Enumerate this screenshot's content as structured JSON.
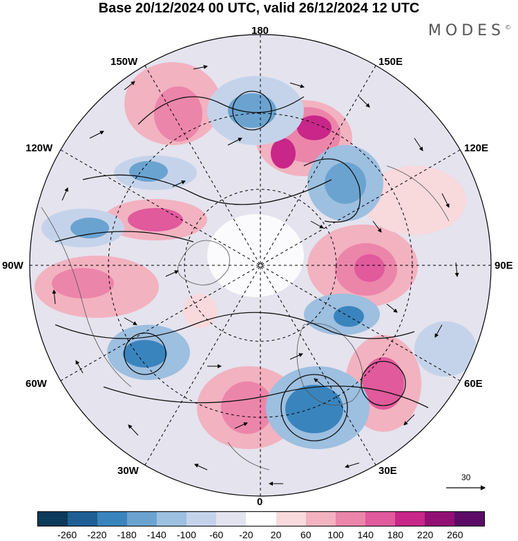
{
  "title": "Base 20/12/2024 00 UTC, valid 26/12/2024 12 UTC",
  "brand": "MODES",
  "brand_mark": "©",
  "longitude_labels": {
    "top": "180",
    "top_left": "150W",
    "top_right": "150E",
    "upper_left": "120W",
    "upper_right": "120E",
    "left": "90W",
    "right": "90E",
    "lower_left": "60W",
    "lower_right": "60E",
    "bottom_left": "30W",
    "bottom_right": "30E",
    "bottom": "0"
  },
  "reference_vector": "30",
  "colorbar": {
    "colors": [
      "#0b3a5a",
      "#1f5f94",
      "#3a84bd",
      "#6ba3d0",
      "#9dbfe0",
      "#c5d3ea",
      "#e3e3f0",
      "#ffffff",
      "#f8d9dc",
      "#f2b2c0",
      "#ec85aa",
      "#e05a9c",
      "#c82689",
      "#920f74",
      "#5b0b66"
    ],
    "ticks": [
      "-260",
      "-220",
      "-180",
      "-140",
      "-100",
      "-60",
      "-20",
      "20",
      "60",
      "100",
      "140",
      "180",
      "220",
      "260"
    ]
  }
}
